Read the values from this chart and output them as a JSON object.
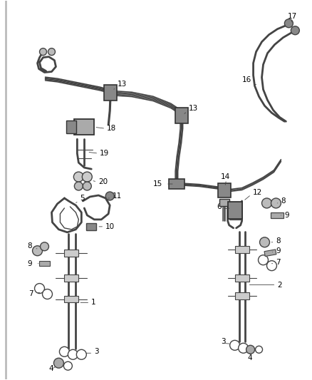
{
  "background_color": "#ffffff",
  "line_color": "#444444",
  "label_color": "#000000",
  "fig_width": 4.38,
  "fig_height": 5.33,
  "dpi": 100
}
